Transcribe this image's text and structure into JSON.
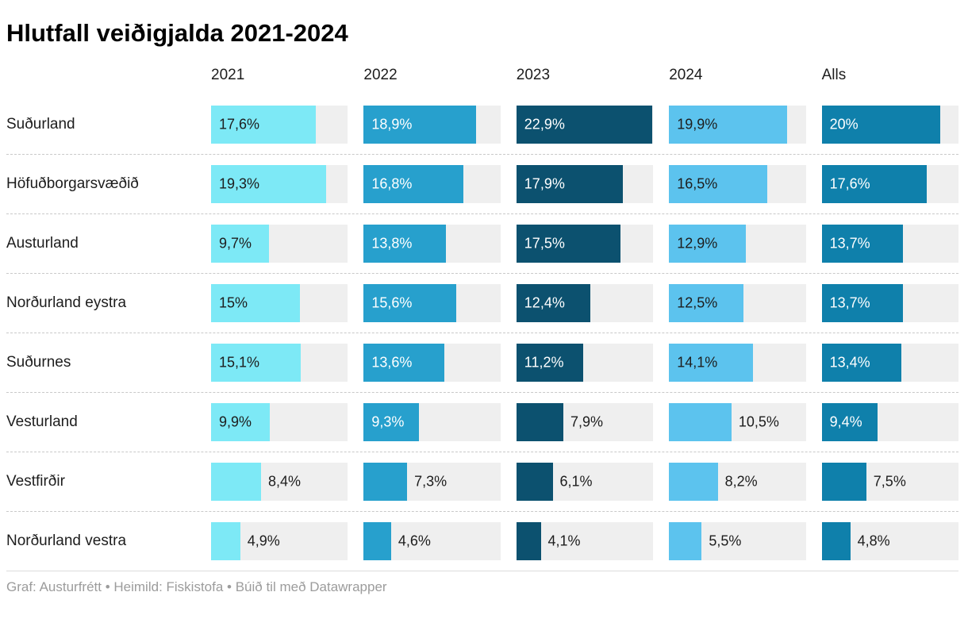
{
  "footer": "Graf: Austurfrétt • Heimild: Fiskistofa • Búið til með Datawrapper",
  "chart_data": {
    "type": "bar",
    "title": "Hlutfall veiðigjalda 2021-2024",
    "xlabel": "",
    "ylabel": "",
    "xmax": 23,
    "track_color": "#efefef",
    "grid": false,
    "legend_position": "column-headers",
    "columns": [
      {
        "label": "2021",
        "color": "#7de9f6",
        "label_color": "#1d1d1d"
      },
      {
        "label": "2022",
        "color": "#27a0cd",
        "label_color": "#ffffff"
      },
      {
        "label": "2023",
        "color": "#0c516f",
        "label_color": "#ffffff"
      },
      {
        "label": "2024",
        "color": "#5cc3ee",
        "label_color": "#1d1d1d"
      },
      {
        "label": "Alls",
        "color": "#0f80ab",
        "label_color": "#ffffff"
      }
    ],
    "rows": [
      {
        "region": "Suðurland",
        "values": [
          {
            "v": 17.6,
            "label": "17,6%",
            "inside": true
          },
          {
            "v": 18.9,
            "label": "18,9%",
            "inside": true
          },
          {
            "v": 22.9,
            "label": "22,9%",
            "inside": true
          },
          {
            "v": 19.9,
            "label": "19,9%",
            "inside": true
          },
          {
            "v": 20.0,
            "label": "20%",
            "inside": true
          }
        ]
      },
      {
        "region": "Höfuðborgarsvæðið",
        "values": [
          {
            "v": 19.3,
            "label": "19,3%",
            "inside": true
          },
          {
            "v": 16.8,
            "label": "16,8%",
            "inside": true
          },
          {
            "v": 17.9,
            "label": "17,9%",
            "inside": true
          },
          {
            "v": 16.5,
            "label": "16,5%",
            "inside": true
          },
          {
            "v": 17.6,
            "label": "17,6%",
            "inside": true
          }
        ]
      },
      {
        "region": "Austurland",
        "values": [
          {
            "v": 9.7,
            "label": "9,7%",
            "inside": true
          },
          {
            "v": 13.8,
            "label": "13,8%",
            "inside": true
          },
          {
            "v": 17.5,
            "label": "17,5%",
            "inside": true
          },
          {
            "v": 12.9,
            "label": "12,9%",
            "inside": true
          },
          {
            "v": 13.7,
            "label": "13,7%",
            "inside": true
          }
        ]
      },
      {
        "region": "Norðurland eystra",
        "values": [
          {
            "v": 15.0,
            "label": "15%",
            "inside": true
          },
          {
            "v": 15.6,
            "label": "15,6%",
            "inside": true
          },
          {
            "v": 12.4,
            "label": "12,4%",
            "inside": true
          },
          {
            "v": 12.5,
            "label": "12,5%",
            "inside": true
          },
          {
            "v": 13.7,
            "label": "13,7%",
            "inside": true
          }
        ]
      },
      {
        "region": "Suðurnes",
        "values": [
          {
            "v": 15.1,
            "label": "15,1%",
            "inside": true
          },
          {
            "v": 13.6,
            "label": "13,6%",
            "inside": true
          },
          {
            "v": 11.2,
            "label": "11,2%",
            "inside": true
          },
          {
            "v": 14.1,
            "label": "14,1%",
            "inside": true
          },
          {
            "v": 13.4,
            "label": "13,4%",
            "inside": true
          }
        ]
      },
      {
        "region": "Vesturland",
        "values": [
          {
            "v": 9.9,
            "label": "9,9%",
            "inside": true
          },
          {
            "v": 9.3,
            "label": "9,3%",
            "inside": true
          },
          {
            "v": 7.9,
            "label": "7,9%",
            "inside": false
          },
          {
            "v": 10.5,
            "label": "10,5%",
            "inside": false
          },
          {
            "v": 9.4,
            "label": "9,4%",
            "inside": true
          }
        ]
      },
      {
        "region": "Vestfirðir",
        "values": [
          {
            "v": 8.4,
            "label": "8,4%",
            "inside": false
          },
          {
            "v": 7.3,
            "label": "7,3%",
            "inside": false
          },
          {
            "v": 6.1,
            "label": "6,1%",
            "inside": false
          },
          {
            "v": 8.2,
            "label": "8,2%",
            "inside": false
          },
          {
            "v": 7.5,
            "label": "7,5%",
            "inside": false
          }
        ]
      },
      {
        "region": "Norðurland vestra",
        "values": [
          {
            "v": 4.9,
            "label": "4,9%",
            "inside": false
          },
          {
            "v": 4.6,
            "label": "4,6%",
            "inside": false
          },
          {
            "v": 4.1,
            "label": "4,1%",
            "inside": false
          },
          {
            "v": 5.5,
            "label": "5,5%",
            "inside": false
          },
          {
            "v": 4.8,
            "label": "4,8%",
            "inside": false
          }
        ]
      }
    ]
  }
}
